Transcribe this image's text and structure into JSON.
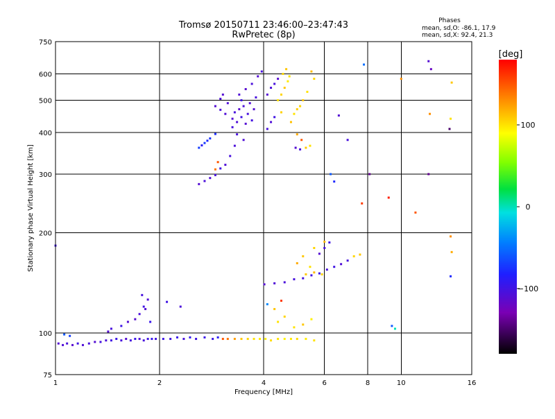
{
  "header": {
    "title_line1": "Tromsø 20150711 23:46:00–23:47:43",
    "title_line2": "RwPretec (8p)",
    "phases_heading": "Phases",
    "phases_line1": "mean, sd,O: -86.1, 17.9",
    "phases_line2": "mean, sd,X:  92.4, 21.3"
  },
  "colorbar": {
    "unit_label": "[deg]",
    "range": [
      -180,
      180
    ],
    "ticks": [
      {
        "value": 100,
        "label": "100"
      },
      {
        "value": 0,
        "label": "0"
      },
      {
        "value": -100,
        "label": "−100"
      }
    ]
  },
  "chart_data": {
    "type": "scatter",
    "xlabel": "Frequency [MHz]",
    "ylabel": "Stationary phase Virtual Height [km]",
    "xscale": "log",
    "yscale": "log",
    "xlim": [
      1,
      16
    ],
    "ylim": [
      75,
      750
    ],
    "x_ticks": [
      {
        "value": 1,
        "label": "1"
      },
      {
        "value": 2,
        "label": "2"
      },
      {
        "value": 4,
        "label": "4"
      },
      {
        "value": 6,
        "label": "6"
      },
      {
        "value": 8,
        "label": "8"
      },
      {
        "value": 10,
        "label": "10"
      },
      {
        "value": 16,
        "label": "16"
      }
    ],
    "y_ticks": [
      {
        "value": 75,
        "label": "75"
      },
      {
        "value": 100,
        "label": "100"
      },
      {
        "value": 200,
        "label": "200"
      },
      {
        "value": 300,
        "label": "300"
      },
      {
        "value": 400,
        "label": "400"
      },
      {
        "value": 500,
        "label": "500"
      },
      {
        "value": 600,
        "label": "600"
      },
      {
        "value": 750,
        "label": "750"
      }
    ],
    "x_grid": [
      2,
      4,
      6,
      8,
      10
    ],
    "y_grid": [
      100,
      200,
      300,
      400,
      500,
      600
    ],
    "series": [
      {
        "color_by": "phase",
        "points": [
          [
            1.02,
            93,
            -110
          ],
          [
            1.05,
            92,
            -108
          ],
          [
            1.08,
            93,
            -105
          ],
          [
            1.12,
            92,
            -112
          ],
          [
            1.16,
            93,
            -100
          ],
          [
            1.2,
            92,
            -108
          ],
          [
            1.25,
            93,
            -104
          ],
          [
            1.3,
            94,
            -110
          ],
          [
            1.35,
            94,
            -102
          ],
          [
            1.4,
            95,
            -106
          ],
          [
            1.45,
            95,
            -100
          ],
          [
            1.5,
            96,
            -98
          ],
          [
            1.55,
            95,
            -104
          ],
          [
            1.6,
            96,
            -110
          ],
          [
            1.65,
            95,
            -102
          ],
          [
            1.7,
            96,
            -96
          ],
          [
            1.75,
            96,
            -108
          ],
          [
            1.8,
            95,
            -104
          ],
          [
            1.85,
            96,
            -100
          ],
          [
            1.9,
            96,
            -94
          ],
          [
            1.95,
            96,
            -102
          ],
          [
            2.05,
            96,
            -98
          ],
          [
            2.15,
            96,
            -100
          ],
          [
            2.25,
            97,
            -96
          ],
          [
            2.35,
            96,
            -104
          ],
          [
            2.45,
            97,
            -92
          ],
          [
            2.55,
            96,
            -100
          ],
          [
            2.7,
            97,
            -96
          ],
          [
            2.85,
            96,
            -98
          ],
          [
            2.95,
            97,
            -88
          ],
          [
            3.05,
            96,
            150
          ],
          [
            3.15,
            96,
            140
          ],
          [
            3.3,
            96,
            125
          ],
          [
            3.45,
            96,
            110
          ],
          [
            3.6,
            96,
            105
          ],
          [
            3.75,
            96,
            100
          ],
          [
            3.9,
            96,
            98
          ],
          [
            4.05,
            96,
            96
          ],
          [
            4.2,
            95,
            102
          ],
          [
            4.4,
            96,
            100
          ],
          [
            4.6,
            96,
            94
          ],
          [
            4.8,
            96,
            98
          ],
          [
            5.0,
            96,
            102
          ],
          [
            5.3,
            96,
            96
          ],
          [
            5.6,
            95,
            100
          ],
          [
            1.06,
            99,
            -60
          ],
          [
            1.1,
            98,
            -70
          ],
          [
            1.42,
            101,
            -110
          ],
          [
            1.45,
            103,
            -104
          ],
          [
            1.7,
            110,
            -112
          ],
          [
            1.75,
            114,
            -106
          ],
          [
            1.8,
            120,
            -100
          ],
          [
            1.85,
            126,
            -108
          ],
          [
            1.78,
            130,
            -104
          ],
          [
            1.82,
            118,
            -110
          ],
          [
            1.88,
            108,
            -96
          ],
          [
            2.1,
            124,
            -100
          ],
          [
            2.3,
            120,
            -106
          ],
          [
            1.55,
            105,
            -98
          ],
          [
            1.62,
            108,
            -110
          ],
          [
            4.02,
            140,
            -110
          ],
          [
            4.3,
            141,
            -108
          ],
          [
            4.6,
            142,
            -105
          ],
          [
            4.9,
            145,
            -104
          ],
          [
            5.2,
            146,
            -102
          ],
          [
            5.5,
            149,
            -100
          ],
          [
            5.8,
            151,
            -98
          ],
          [
            6.1,
            155,
            -104
          ],
          [
            6.4,
            158,
            -100
          ],
          [
            6.7,
            161,
            -108
          ],
          [
            7.0,
            165,
            -104
          ],
          [
            5.3,
            150,
            110
          ],
          [
            5.6,
            152,
            115
          ],
          [
            5.9,
            150,
            105
          ],
          [
            5.45,
            158,
            100
          ],
          [
            5.0,
            162,
            120
          ],
          [
            5.2,
            170,
            110
          ],
          [
            5.6,
            180,
            105
          ],
          [
            6.0,
            188,
            115
          ],
          [
            4.4,
            108,
            100
          ],
          [
            4.6,
            112,
            105
          ],
          [
            4.3,
            118,
            110
          ],
          [
            4.1,
            122,
            -40
          ],
          [
            4.5,
            125,
            160
          ],
          [
            4.9,
            104,
            100
          ],
          [
            5.2,
            106,
            110
          ],
          [
            5.5,
            110,
            95
          ],
          [
            5.8,
            173,
            -110
          ],
          [
            6.0,
            180,
            -104
          ],
          [
            6.2,
            187,
            -100
          ],
          [
            7.3,
            170,
            105
          ],
          [
            7.6,
            172,
            110
          ],
          [
            2.6,
            280,
            -110
          ],
          [
            2.7,
            286,
            -106
          ],
          [
            2.8,
            292,
            -108
          ],
          [
            2.9,
            298,
            -104
          ],
          [
            3.0,
            312,
            -100
          ],
          [
            3.1,
            320,
            -108
          ],
          [
            3.2,
            340,
            -104
          ],
          [
            2.95,
            326,
            150
          ],
          [
            2.9,
            310,
            140
          ],
          [
            2.6,
            360,
            -70
          ],
          [
            2.7,
            372,
            -72
          ],
          [
            2.8,
            384,
            -75
          ],
          [
            2.9,
            396,
            -78
          ],
          [
            2.65,
            366,
            -88
          ],
          [
            2.75,
            378,
            -80
          ],
          [
            2.9,
            480,
            -110
          ],
          [
            3.0,
            468,
            -106
          ],
          [
            3.1,
            455,
            -108
          ],
          [
            3.25,
            440,
            -110
          ],
          [
            3.3,
            460,
            -104
          ],
          [
            3.35,
            430,
            -108
          ],
          [
            3.4,
            470,
            -112
          ],
          [
            3.45,
            445,
            -100
          ],
          [
            3.5,
            480,
            -106
          ],
          [
            3.55,
            425,
            -110
          ],
          [
            3.6,
            455,
            -104
          ],
          [
            3.65,
            490,
            -108
          ],
          [
            3.7,
            435,
            -102
          ],
          [
            3.75,
            470,
            -110
          ],
          [
            3.8,
            510,
            -104
          ],
          [
            3.4,
            520,
            -108
          ],
          [
            3.55,
            540,
            -112
          ],
          [
            3.7,
            560,
            -106
          ],
          [
            3.85,
            590,
            -110
          ],
          [
            3.95,
            610,
            -104
          ],
          [
            3.45,
            500,
            -100
          ],
          [
            3.25,
            415,
            -104
          ],
          [
            3.0,
            505,
            -106
          ],
          [
            3.05,
            520,
            -110
          ],
          [
            3.15,
            490,
            -108
          ],
          [
            3.35,
            395,
            -104
          ],
          [
            3.5,
            380,
            -108
          ],
          [
            3.3,
            365,
            -106
          ],
          [
            4.1,
            410,
            -104
          ],
          [
            4.2,
            430,
            -108
          ],
          [
            4.3,
            445,
            -100
          ],
          [
            4.1,
            520,
            -110
          ],
          [
            4.2,
            545,
            -106
          ],
          [
            4.3,
            560,
            -104
          ],
          [
            4.4,
            580,
            -112
          ],
          [
            4.4,
            500,
            100
          ],
          [
            4.5,
            520,
            105
          ],
          [
            4.6,
            545,
            110
          ],
          [
            4.7,
            570,
            98
          ],
          [
            4.55,
            600,
            104
          ],
          [
            4.65,
            620,
            110
          ],
          [
            4.75,
            590,
            100
          ],
          [
            4.5,
            460,
            106
          ],
          [
            4.8,
            430,
            112
          ],
          [
            4.9,
            455,
            100
          ],
          [
            5.0,
            470,
            108
          ],
          [
            5.1,
            480,
            104
          ],
          [
            5.2,
            500,
            110
          ],
          [
            5.35,
            530,
            100
          ],
          [
            5.5,
            610,
            115
          ],
          [
            5.6,
            580,
            105
          ],
          [
            4.95,
            360,
            -110
          ],
          [
            5.1,
            356,
            -104
          ],
          [
            5.3,
            360,
            110
          ],
          [
            5.45,
            365,
            100
          ],
          [
            5.0,
            395,
            120
          ],
          [
            5.15,
            380,
            150
          ],
          [
            6.25,
            300,
            -60
          ],
          [
            6.4,
            285,
            -80
          ],
          [
            6.6,
            450,
            -110
          ],
          [
            7.0,
            380,
            -104
          ],
          [
            7.7,
            245,
            160
          ],
          [
            7.8,
            640,
            -50
          ],
          [
            8.1,
            300,
            -140
          ],
          [
            9.2,
            255,
            170
          ],
          [
            9.4,
            105,
            -60
          ],
          [
            9.6,
            103,
            0
          ],
          [
            10.0,
            580,
            130
          ],
          [
            11.0,
            230,
            150
          ],
          [
            12.0,
            655,
            -110
          ],
          [
            12.2,
            620,
            -120
          ],
          [
            12.1,
            455,
            130
          ],
          [
            12.0,
            300,
            -140
          ],
          [
            13.8,
            410,
            -150
          ],
          [
            13.9,
            440,
            100
          ],
          [
            14.0,
            565,
            110
          ],
          [
            13.9,
            195,
            130
          ],
          [
            14.0,
            175,
            120
          ],
          [
            13.9,
            148,
            -80
          ],
          [
            1.0,
            183,
            -100
          ]
        ]
      }
    ]
  }
}
